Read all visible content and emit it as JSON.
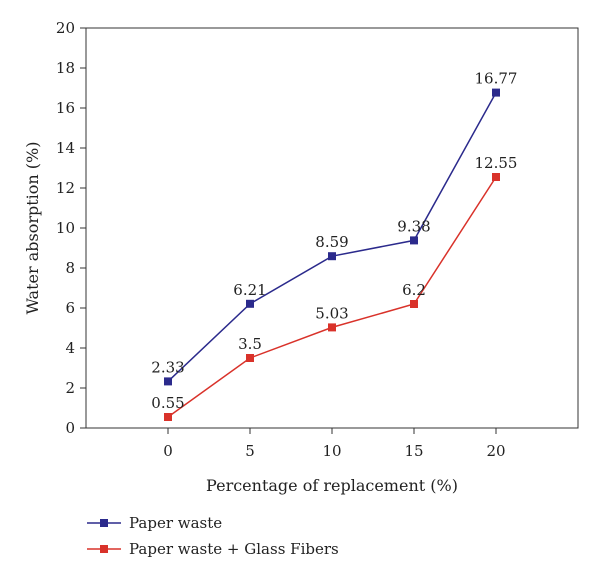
{
  "chart_data": {
    "type": "line",
    "title": "",
    "xlabel": "Percentage of replacement (%)",
    "ylabel": "Water absorption (%)",
    "x": [
      0,
      5,
      10,
      15,
      20
    ],
    "xlim": [
      -5,
      25
    ],
    "ylim": [
      0,
      20
    ],
    "xticks": [
      0,
      5,
      10,
      15,
      20
    ],
    "yticks": [
      0,
      2,
      4,
      6,
      8,
      10,
      12,
      14,
      16,
      18,
      20
    ],
    "grid": false,
    "legend_position": "bottom-left",
    "series": [
      {
        "name": "Paper waste",
        "values": [
          2.33,
          6.21,
          8.59,
          9.38,
          16.77
        ],
        "labels": [
          "2.33",
          "6.21",
          "8.59",
          "9.38",
          "16.77"
        ],
        "color": "#2b2a8c",
        "marker": "square"
      },
      {
        "name": "Paper waste + Glass Fibers",
        "values": [
          0.55,
          3.5,
          5.03,
          6.2,
          12.55
        ],
        "labels": [
          "0.55",
          "3.5",
          "5.03",
          "6.2",
          "12.55"
        ],
        "color": "#d9322a",
        "marker": "square"
      }
    ]
  }
}
